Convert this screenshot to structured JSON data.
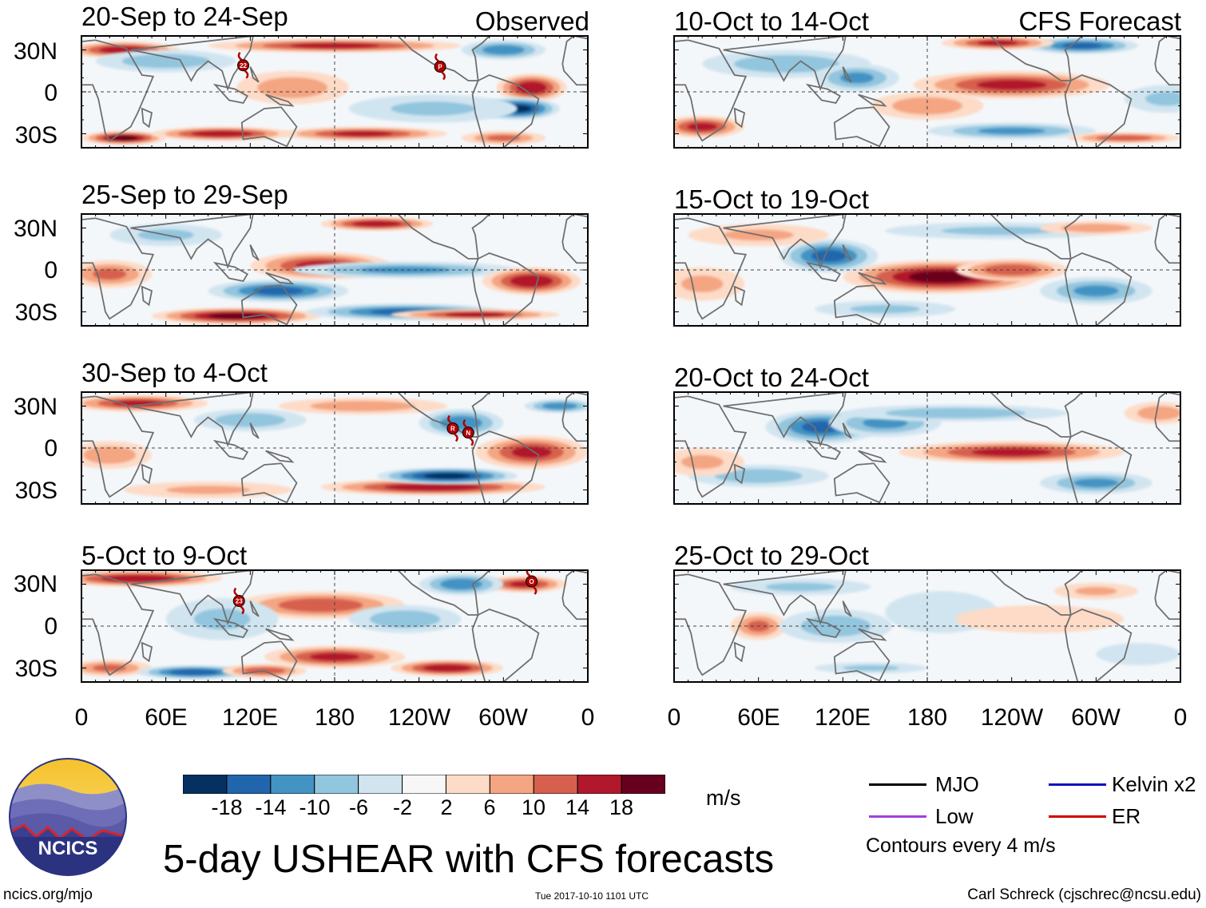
{
  "colors": {
    "panel_bg": "#f4f7fa",
    "land": "#6f6f6f",
    "zero_line": "#444444"
  },
  "left_column": {
    "label": "Observed"
  },
  "right_column": {
    "label": "CFS Forecast"
  },
  "panels": [
    {
      "title": "20-Sep to 24-Sep",
      "column": "observed"
    },
    {
      "title": "25-Sep to 29-Sep",
      "column": "observed"
    },
    {
      "title": "30-Sep to 4-Oct",
      "column": "observed"
    },
    {
      "title": "5-Oct to 9-Oct",
      "column": "observed"
    },
    {
      "title": "10-Oct to 14-Oct",
      "column": "forecast"
    },
    {
      "title": "15-Oct to 19-Oct",
      "column": "forecast"
    },
    {
      "title": "20-Oct to 24-Oct",
      "column": "forecast"
    },
    {
      "title": "25-Oct to 29-Oct",
      "column": "forecast"
    }
  ],
  "storm_markers": [
    {
      "panel": 0,
      "label": "22",
      "lon": 115,
      "lat": 19
    },
    {
      "panel": 0,
      "label": "P",
      "lon": 255,
      "lat": 18
    },
    {
      "panel": 2,
      "label": "R",
      "lon": 264,
      "lat": 14
    },
    {
      "panel": 2,
      "label": "N",
      "lon": 275,
      "lat": 11
    },
    {
      "panel": 3,
      "label": "23",
      "lon": 112,
      "lat": 18
    },
    {
      "panel": 3,
      "label": "O",
      "lon": 320,
      "lat": 32
    }
  ],
  "chart_data": {
    "type": "heatmap",
    "title": "5-day USHEAR with CFS forecasts",
    "variable": "USHEAR",
    "units": "m/s",
    "x": {
      "ticks": [
        "0",
        "60E",
        "120E",
        "180",
        "120W",
        "60W",
        "0"
      ],
      "range": [
        0,
        360
      ],
      "unit": "degrees longitude"
    },
    "y": {
      "ticks": [
        "30N",
        "0",
        "30S"
      ],
      "range": [
        -40,
        40
      ],
      "unit": "degrees latitude"
    },
    "colorbar": {
      "labels": [
        "-18",
        "-14",
        "-10",
        "-6",
        "-2",
        "2",
        "6",
        "10",
        "14",
        "18"
      ],
      "levels": [
        -18,
        -14,
        -10,
        -6,
        -2,
        2,
        6,
        10,
        14,
        18
      ],
      "colors": [
        "#053061",
        "#2166ac",
        "#4393c3",
        "#92c5de",
        "#d1e5f0",
        "#f7f7f7",
        "#fddbc7",
        "#f4a582",
        "#d6604d",
        "#b2182b",
        "#67001f"
      ]
    },
    "panels": [
      {
        "title": "20-Sep to 24-Sep",
        "source": "Observed",
        "features": [
          [
            30,
            30,
            40,
            6,
            16
          ],
          [
            180,
            33,
            90,
            5,
            14
          ],
          [
            300,
            30,
            30,
            7,
            -12
          ],
          [
            60,
            22,
            50,
            8,
            -8
          ],
          [
            150,
            3,
            40,
            12,
            8
          ],
          [
            320,
            3,
            25,
            10,
            16
          ],
          [
            310,
            -12,
            30,
            8,
            -18
          ],
          [
            30,
            -33,
            30,
            5,
            18
          ],
          [
            100,
            -30,
            50,
            5,
            16
          ],
          [
            200,
            -30,
            60,
            5,
            14
          ],
          [
            250,
            -12,
            60,
            10,
            -6
          ],
          [
            300,
            -33,
            30,
            5,
            10
          ]
        ]
      },
      {
        "title": "25-Sep to 29-Sep",
        "source": "Observed",
        "features": [
          [
            210,
            33,
            40,
            5,
            16
          ],
          [
            60,
            25,
            40,
            8,
            -6
          ],
          [
            170,
            3,
            50,
            10,
            14
          ],
          [
            230,
            0,
            80,
            6,
            -10
          ],
          [
            320,
            -8,
            35,
            10,
            16
          ],
          [
            20,
            -3,
            30,
            10,
            10
          ],
          [
            110,
            -33,
            60,
            6,
            18
          ],
          [
            140,
            -15,
            50,
            8,
            -14
          ],
          [
            230,
            -30,
            70,
            6,
            -14
          ],
          [
            280,
            -32,
            60,
            4,
            14
          ]
        ]
      },
      {
        "title": "30-Sep to 4-Oct",
        "source": "Observed",
        "features": [
          [
            40,
            32,
            50,
            6,
            14
          ],
          [
            200,
            30,
            60,
            6,
            8
          ],
          [
            120,
            20,
            40,
            8,
            -8
          ],
          [
            270,
            18,
            30,
            10,
            -12
          ],
          [
            320,
            -3,
            40,
            12,
            14
          ],
          [
            20,
            -5,
            30,
            10,
            8
          ],
          [
            250,
            -28,
            80,
            6,
            16
          ],
          [
            260,
            -20,
            50,
            6,
            -18
          ],
          [
            340,
            30,
            25,
            5,
            -12
          ],
          [
            90,
            -30,
            60,
            6,
            6
          ]
        ]
      },
      {
        "title": "5-Oct to 9-Oct",
        "source": "Observed",
        "features": [
          [
            40,
            34,
            60,
            6,
            16
          ],
          [
            315,
            30,
            30,
            6,
            14
          ],
          [
            270,
            30,
            30,
            8,
            -12
          ],
          [
            170,
            15,
            60,
            10,
            12
          ],
          [
            230,
            5,
            40,
            10,
            -8
          ],
          [
            100,
            5,
            40,
            15,
            -6
          ],
          [
            180,
            -22,
            50,
            8,
            14
          ],
          [
            260,
            -30,
            40,
            6,
            16
          ],
          [
            20,
            -30,
            30,
            6,
            10
          ],
          [
            80,
            -33,
            40,
            5,
            -16
          ],
          [
            130,
            -32,
            30,
            5,
            12
          ]
        ]
      },
      {
        "title": "10-Oct to 14-Oct",
        "source": "CFS Forecast",
        "features": [
          [
            240,
            5,
            70,
            10,
            14
          ],
          [
            290,
            33,
            40,
            6,
            -14
          ],
          [
            230,
            35,
            40,
            5,
            14
          ],
          [
            80,
            20,
            60,
            10,
            -8
          ],
          [
            130,
            10,
            30,
            10,
            -10
          ],
          [
            180,
            -10,
            40,
            10,
            8
          ],
          [
            20,
            -25,
            30,
            8,
            14
          ],
          [
            350,
            -5,
            30,
            10,
            -6
          ],
          [
            240,
            -28,
            60,
            6,
            -10
          ],
          [
            320,
            -33,
            40,
            4,
            12
          ]
        ]
      },
      {
        "title": "15-Oct to 19-Oct",
        "source": "CFS Forecast",
        "features": [
          [
            190,
            -5,
            70,
            12,
            18
          ],
          [
            240,
            0,
            40,
            8,
            12
          ],
          [
            110,
            10,
            35,
            12,
            -14
          ],
          [
            60,
            25,
            50,
            8,
            6
          ],
          [
            230,
            28,
            80,
            6,
            -6
          ],
          [
            300,
            -15,
            40,
            10,
            -10
          ],
          [
            20,
            -10,
            30,
            12,
            6
          ],
          [
            150,
            -28,
            50,
            6,
            -6
          ],
          [
            300,
            30,
            40,
            5,
            8
          ]
        ]
      },
      {
        "title": "20-Oct to 24-Oct",
        "source": "CFS Forecast",
        "features": [
          [
            240,
            -3,
            80,
            8,
            14
          ],
          [
            105,
            15,
            40,
            12,
            -14
          ],
          [
            150,
            18,
            40,
            10,
            -10
          ],
          [
            60,
            -20,
            50,
            8,
            -8
          ],
          [
            200,
            25,
            80,
            6,
            -8
          ],
          [
            300,
            -25,
            40,
            8,
            -10
          ],
          [
            345,
            25,
            25,
            8,
            8
          ],
          [
            20,
            -10,
            30,
            10,
            6
          ]
        ]
      },
      {
        "title": "25-Oct to 29-Oct",
        "source": "CFS Forecast",
        "features": [
          [
            60,
            0,
            20,
            10,
            10
          ],
          [
            115,
            0,
            40,
            12,
            -8
          ],
          [
            90,
            28,
            50,
            6,
            -6
          ],
          [
            190,
            10,
            40,
            15,
            -4
          ],
          [
            260,
            5,
            60,
            10,
            4
          ],
          [
            300,
            25,
            30,
            6,
            6
          ],
          [
            140,
            -30,
            40,
            4,
            -6
          ],
          [
            330,
            -20,
            30,
            8,
            -4
          ]
        ]
      }
    ]
  },
  "colorbar_units": "m/s",
  "legend": {
    "items": [
      {
        "label": "MJO",
        "color": "#000000"
      },
      {
        "label": "Kelvin x2",
        "color": "#1010c8"
      },
      {
        "label": "Low",
        "color": "#a040e0"
      },
      {
        "label": "ER",
        "color": "#d00000"
      }
    ],
    "contour_note": "Contours every 4 m/s"
  },
  "logo": {
    "text": "NCICS"
  },
  "footer": {
    "title": "5-day USHEAR with CFS forecasts",
    "url": "ncics.org/mjo",
    "timestamp": "Tue 2017-10-10 1101 UTC",
    "credit": "Carl Schreck (cjschrec@ncsu.edu)"
  }
}
